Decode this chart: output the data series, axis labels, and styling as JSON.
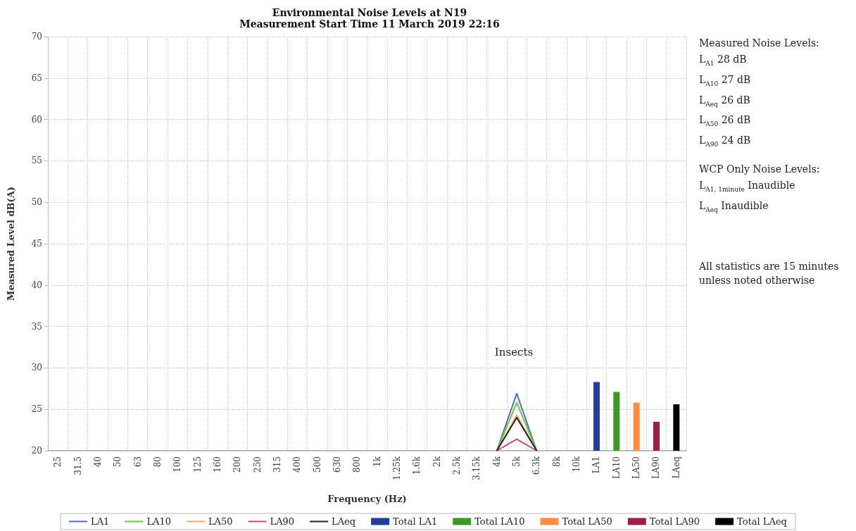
{
  "chart_data": {
    "type": "line",
    "title": "Environmental Noise Levels at N19",
    "subtitle": "Measurement Start Time 11 March 2019 22:16",
    "xlabel": "Frequency (Hz)",
    "ylabel": "Measured Level dB(A)",
    "categories": [
      "25",
      "31.5",
      "40",
      "50",
      "63",
      "80",
      "100",
      "125",
      "160",
      "200",
      "250",
      "315",
      "400",
      "500",
      "630",
      "800",
      "1k",
      "1.25k",
      "1.6k",
      "2k",
      "2.5k",
      "3.15k",
      "4k",
      "5k",
      "6.3k",
      "8k",
      "10k",
      "LA1",
      "LA10",
      "LA50",
      "LA90",
      "LAeq"
    ],
    "series": [
      {
        "name": "LA1",
        "color": "#4a6fc0",
        "values": [
          null,
          null,
          null,
          null,
          null,
          null,
          null,
          null,
          null,
          null,
          null,
          null,
          null,
          null,
          null,
          null,
          null,
          null,
          null,
          null,
          null,
          null,
          20,
          26.9,
          20,
          null,
          null,
          null,
          null,
          null,
          null,
          null
        ]
      },
      {
        "name": "LA10",
        "color": "#6cc24a",
        "values": [
          null,
          null,
          null,
          null,
          null,
          null,
          null,
          null,
          null,
          null,
          null,
          null,
          null,
          null,
          null,
          null,
          null,
          null,
          null,
          null,
          null,
          null,
          20,
          25.8,
          20,
          null,
          null,
          null,
          null,
          null,
          null,
          null
        ]
      },
      {
        "name": "LA50",
        "color": "#ffa86a",
        "values": [
          null,
          null,
          null,
          null,
          null,
          null,
          null,
          null,
          null,
          null,
          null,
          null,
          null,
          null,
          null,
          null,
          null,
          null,
          null,
          null,
          null,
          null,
          20,
          24.3,
          20,
          null,
          null,
          null,
          null,
          null,
          null,
          null
        ]
      },
      {
        "name": "LA90",
        "color": "#c0507a",
        "values": [
          null,
          null,
          null,
          null,
          null,
          null,
          null,
          null,
          null,
          null,
          null,
          null,
          null,
          null,
          null,
          null,
          null,
          null,
          null,
          null,
          null,
          null,
          20,
          21.4,
          20,
          null,
          null,
          null,
          null,
          null,
          null,
          null
        ]
      },
      {
        "name": "LAeq",
        "color": "#222222",
        "values": [
          null,
          null,
          null,
          null,
          null,
          null,
          null,
          null,
          null,
          null,
          null,
          null,
          null,
          null,
          null,
          null,
          null,
          null,
          null,
          null,
          null,
          null,
          20,
          24.0,
          20,
          null,
          null,
          null,
          null,
          null,
          null,
          null
        ]
      },
      {
        "name": "Total LA1",
        "type": "bar",
        "color": "#1f3f99",
        "values": [
          null,
          null,
          null,
          null,
          null,
          null,
          null,
          null,
          null,
          null,
          null,
          null,
          null,
          null,
          null,
          null,
          null,
          null,
          null,
          null,
          null,
          null,
          null,
          null,
          null,
          null,
          null,
          28.3,
          null,
          null,
          null,
          null
        ]
      },
      {
        "name": "Total LA10",
        "type": "bar",
        "color": "#3a9a1f",
        "values": [
          null,
          null,
          null,
          null,
          null,
          null,
          null,
          null,
          null,
          null,
          null,
          null,
          null,
          null,
          null,
          null,
          null,
          null,
          null,
          null,
          null,
          null,
          null,
          null,
          null,
          null,
          null,
          null,
          27.1,
          null,
          null,
          null
        ]
      },
      {
        "name": "Total LA50",
        "type": "bar",
        "color": "#ff8c42",
        "values": [
          null,
          null,
          null,
          null,
          null,
          null,
          null,
          null,
          null,
          null,
          null,
          null,
          null,
          null,
          null,
          null,
          null,
          null,
          null,
          null,
          null,
          null,
          null,
          null,
          null,
          null,
          null,
          null,
          null,
          25.8,
          null,
          null
        ]
      },
      {
        "name": "Total LA90",
        "type": "bar",
        "color": "#9a1f4a",
        "values": [
          null,
          null,
          null,
          null,
          null,
          null,
          null,
          null,
          null,
          null,
          null,
          null,
          null,
          null,
          null,
          null,
          null,
          null,
          null,
          null,
          null,
          null,
          null,
          null,
          null,
          null,
          null,
          null,
          null,
          null,
          23.5,
          null
        ]
      },
      {
        "name": "Total LAeq",
        "type": "bar",
        "color": "#000000",
        "values": [
          null,
          null,
          null,
          null,
          null,
          null,
          null,
          null,
          null,
          null,
          null,
          null,
          null,
          null,
          null,
          null,
          null,
          null,
          null,
          null,
          null,
          null,
          null,
          null,
          null,
          null,
          null,
          null,
          null,
          null,
          null,
          25.6
        ]
      }
    ],
    "ylim": [
      20,
      70
    ],
    "yticks": [
      20,
      25,
      30,
      35,
      40,
      45,
      50,
      55,
      60,
      65,
      70
    ],
    "grid": true,
    "legend": "bottom",
    "marker": "none",
    "line_style": "solid",
    "annotations": [
      "Insects",
      "Measured Noise Levels:",
      "L$_{A1}$ 28 dB",
      "L$_{A10}$ 27 dB",
      "L$_{Aeq}$ 26 dB",
      "L$_{A50}$ 26 dB",
      "L$_{A90}$ 24 dB",
      "WCP Only Noise Levels:",
      "L$_{A1, 1minute}$ Inaudible",
      "L$_{Aeq}$ Inaudible",
      "All statistics are 15 minutes unless noted otherwise"
    ]
  }
}
